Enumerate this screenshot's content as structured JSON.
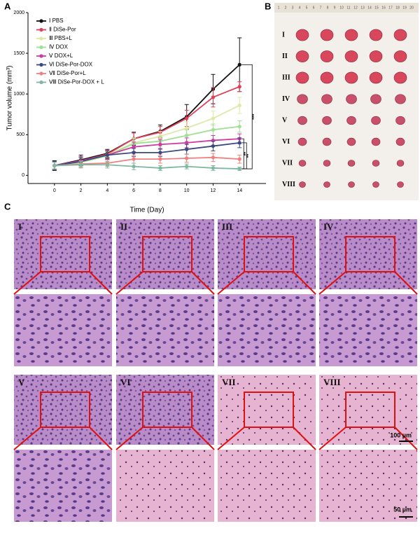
{
  "chart_data": {
    "type": "line",
    "ylabel": "Tumor volume (mm³)",
    "xlabel": "Time (Day)",
    "x": [
      0,
      2,
      4,
      6,
      8,
      10,
      12,
      14
    ],
    "xlim": [
      -2,
      16
    ],
    "xticks": [
      0,
      2,
      4,
      6,
      8,
      10,
      12,
      14
    ],
    "ylim": [
      -100,
      2000
    ],
    "yticks": [
      0,
      500,
      1000,
      1500,
      2000
    ],
    "legend": "upper left",
    "series": [
      {
        "name": "Ⅰ PBS",
        "color": "#111111",
        "values": [
          120,
          190,
          270,
          450,
          540,
          720,
          1060,
          1360
        ],
        "errors": [
          60,
          60,
          50,
          80,
          80,
          150,
          180,
          330
        ]
      },
      {
        "name": "Ⅱ DiSe-Por",
        "color": "#e0405a",
        "values": [
          120,
          180,
          260,
          450,
          530,
          700,
          960,
          1090
        ],
        "errors": [
          50,
          50,
          50,
          70,
          70,
          100,
          120,
          60
        ]
      },
      {
        "name": "Ⅲ PBS+L",
        "color": "#dfe8a6",
        "values": [
          120,
          170,
          250,
          400,
          480,
          580,
          700,
          860
        ],
        "errors": [
          50,
          50,
          50,
          60,
          60,
          80,
          90,
          100
        ]
      },
      {
        "name": "Ⅳ DOX",
        "color": "#9fe096",
        "values": [
          120,
          160,
          240,
          390,
          420,
          490,
          560,
          600
        ],
        "errors": [
          50,
          50,
          50,
          60,
          60,
          70,
          70,
          70
        ]
      },
      {
        "name": "Ⅴ DOX+L",
        "color": "#d03aa0",
        "values": [
          120,
          180,
          250,
          350,
          380,
          400,
          430,
          450
        ],
        "errors": [
          50,
          50,
          50,
          60,
          60,
          60,
          60,
          60
        ]
      },
      {
        "name": "Ⅵ DiSe-Por-DOX",
        "color": "#3a4a80",
        "values": [
          120,
          170,
          250,
          280,
          280,
          320,
          360,
          400
        ],
        "errors": [
          50,
          50,
          50,
          50,
          50,
          60,
          60,
          60
        ]
      },
      {
        "name": "Ⅶ DiSe-Por+L",
        "color": "#f08080",
        "values": [
          120,
          140,
          150,
          200,
          200,
          210,
          220,
          200
        ],
        "errors": [
          40,
          40,
          40,
          50,
          50,
          50,
          50,
          50
        ]
      },
      {
        "name": "Ⅷ DiSe-Por-DOX + L",
        "color": "#7fb8a0",
        "values": [
          120,
          130,
          130,
          110,
          90,
          110,
          90,
          80
        ],
        "errors": [
          40,
          40,
          40,
          40,
          30,
          30,
          30,
          20
        ]
      }
    ],
    "annotations": [
      "***",
      "**",
      "**"
    ]
  },
  "panels": {
    "a": "A",
    "b": "B",
    "c": "C"
  },
  "tumor_photo": {
    "rows": [
      "I",
      "II",
      "III",
      "IV",
      "V",
      "VI",
      "VII",
      "VIII"
    ],
    "ruler": [
      1,
      2,
      3,
      4,
      5,
      6,
      7,
      8,
      9,
      10,
      11,
      12,
      13,
      14,
      15,
      16,
      17,
      18,
      19,
      20
    ]
  },
  "histology": {
    "groups": [
      "I",
      "II",
      "III",
      "IV",
      "V",
      "VI",
      "VII",
      "VIII"
    ],
    "scale_100": "100 µm",
    "scale_50": "50 µm"
  }
}
